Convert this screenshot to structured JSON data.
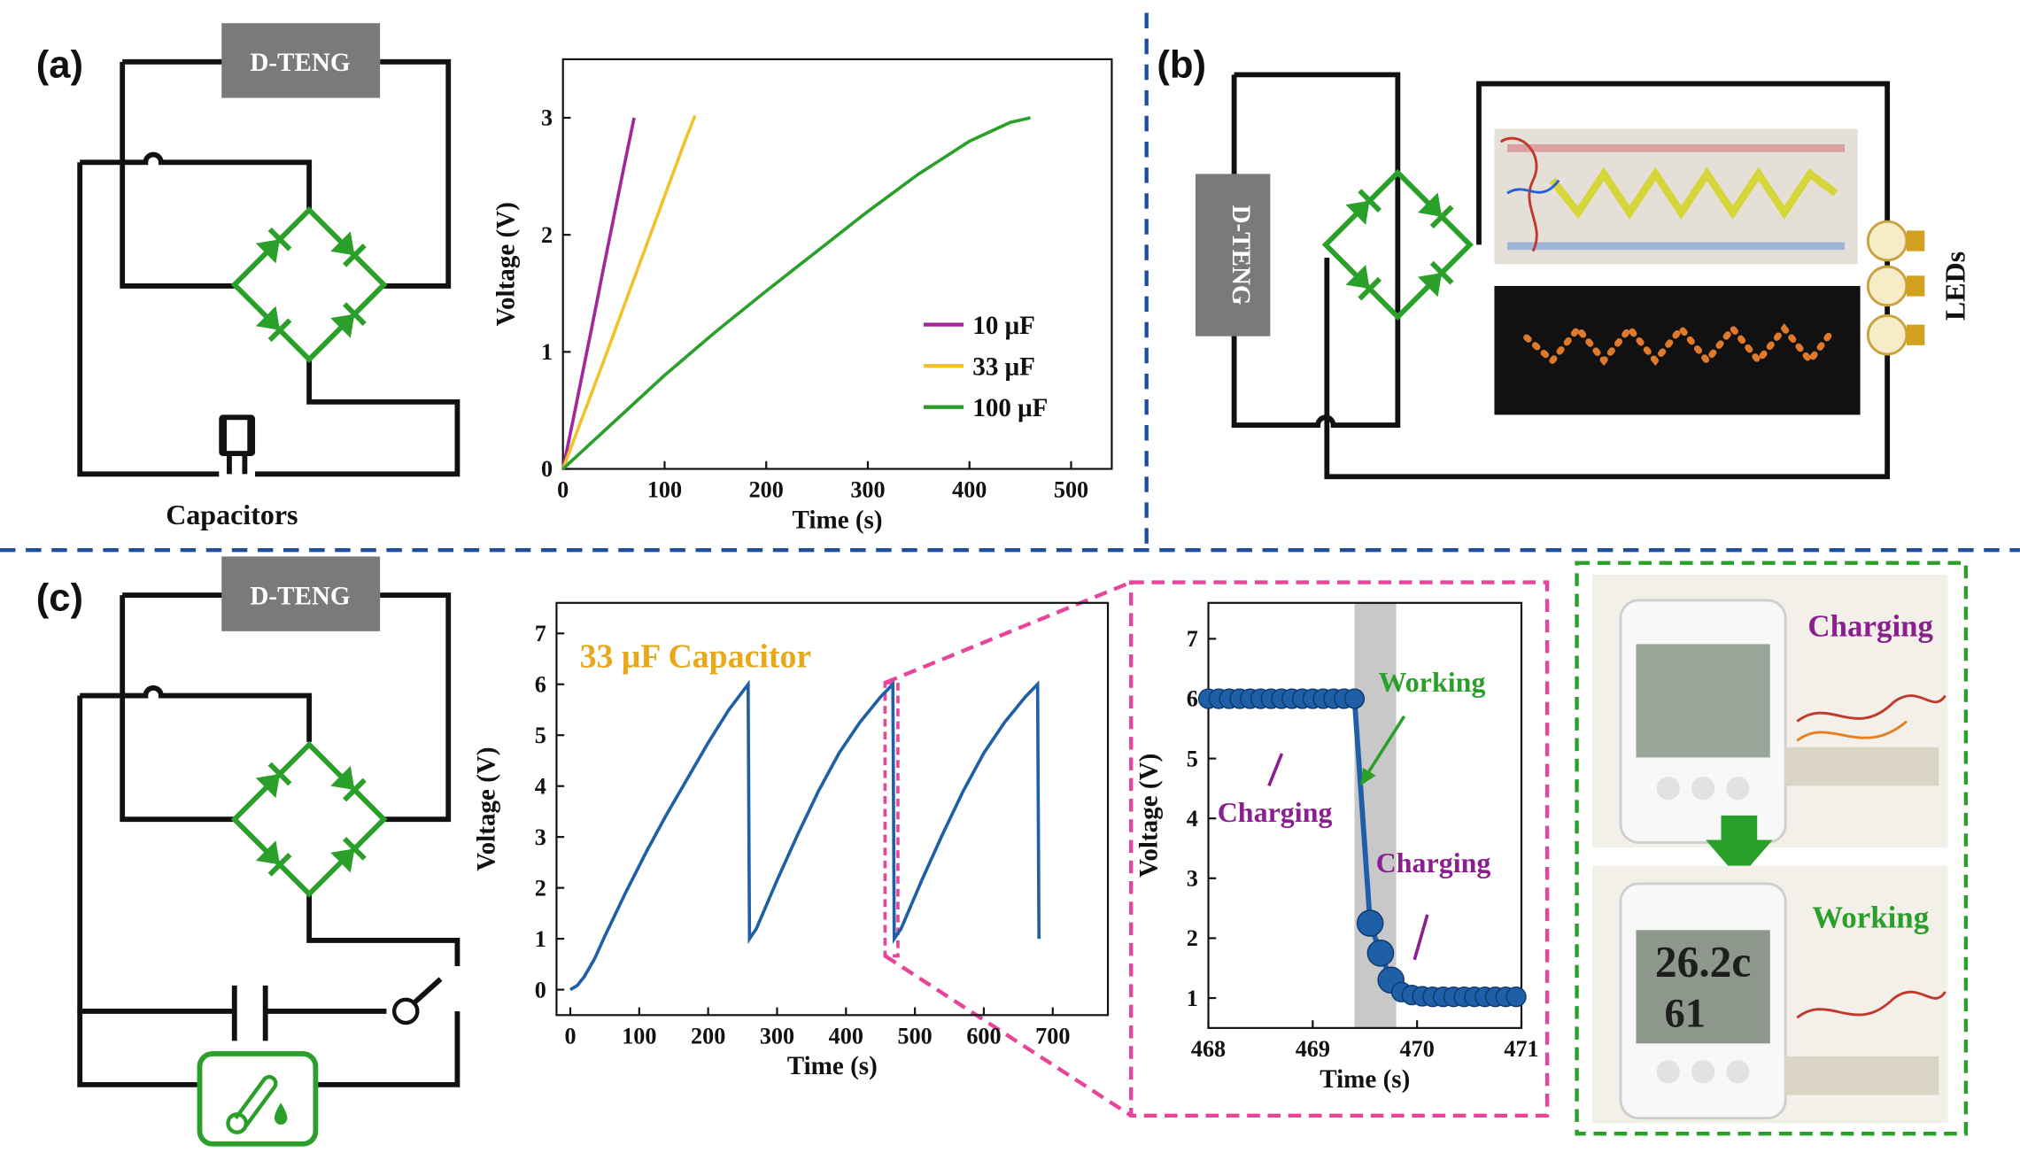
{
  "panels": {
    "a": {
      "label": "(a)",
      "teng": "D-TENG",
      "capacitors": "Capacitors"
    },
    "b": {
      "label": "(b)",
      "teng": "D-TENG",
      "leds": "LEDs"
    },
    "c": {
      "label": "(c)",
      "teng": "D-TENG"
    }
  },
  "inset_c": {
    "charging_top": "Charging",
    "working_bottom": "Working"
  },
  "colors": {
    "divider": "#1f4e9e",
    "diode": "#2aa02a",
    "zoom_box": "#e8449a",
    "photo_box": "#2aa02a",
    "series_blue": "#1f5fa8"
  },
  "icons": {
    "thermo_hygrometer": "thermometer-droplet-icon",
    "teng_box": "teng-generator-box"
  },
  "chart_data": [
    {
      "id": "a",
      "type": "line",
      "xlabel": "Time (s)",
      "ylabel": "Voltage (V)",
      "xlim": [
        0,
        540
      ],
      "ylim": [
        0,
        3.5
      ],
      "xticks": [
        0,
        100,
        200,
        300,
        400,
        500
      ],
      "yticks": [
        0,
        1,
        2,
        3
      ],
      "legend_position": "lower-right",
      "series": [
        {
          "name": "10 μF",
          "color": "#a0289a",
          "x": [
            0,
            10,
            20,
            30,
            40,
            50,
            60,
            70
          ],
          "y": [
            0,
            0.42,
            0.85,
            1.28,
            1.72,
            2.15,
            2.58,
            3.0
          ]
        },
        {
          "name": "33 μF",
          "color": "#f2c12e",
          "x": [
            0,
            20,
            40,
            60,
            80,
            100,
            120,
            130
          ],
          "y": [
            0,
            0.46,
            0.92,
            1.39,
            1.86,
            2.33,
            2.8,
            3.02
          ]
        },
        {
          "name": "100 μF",
          "color": "#2aa02a",
          "x": [
            0,
            50,
            100,
            150,
            200,
            250,
            300,
            350,
            400,
            440,
            460
          ],
          "y": [
            0,
            0.4,
            0.8,
            1.17,
            1.52,
            1.86,
            2.2,
            2.52,
            2.8,
            2.96,
            3.0
          ]
        }
      ]
    },
    {
      "id": "c-main",
      "type": "line",
      "annotation": "33 μF Capacitor",
      "xlabel": "Time (s)",
      "ylabel": "Voltage (V)",
      "xlim": [
        -20,
        780
      ],
      "ylim": [
        -0.5,
        7.6
      ],
      "xticks": [
        0,
        100,
        200,
        300,
        400,
        500,
        600,
        700
      ],
      "yticks": [
        0,
        1,
        2,
        3,
        4,
        5,
        6,
        7
      ],
      "series": [
        {
          "name": "",
          "color": "#1f5fa8",
          "x": [
            0,
            10,
            20,
            35,
            50,
            80,
            110,
            140,
            170,
            200,
            230,
            258,
            260,
            270,
            300,
            330,
            360,
            390,
            420,
            450,
            468,
            470,
            480,
            510,
            540,
            570,
            600,
            630,
            660,
            678,
            680
          ],
          "y": [
            0,
            0.08,
            0.25,
            0.6,
            1.05,
            1.9,
            2.7,
            3.45,
            4.15,
            4.85,
            5.5,
            6.0,
            1.0,
            1.2,
            2.15,
            3.05,
            3.9,
            4.65,
            5.25,
            5.75,
            6.0,
            1.0,
            1.2,
            2.15,
            3.05,
            3.9,
            4.65,
            5.25,
            5.75,
            6.0,
            1.0
          ]
        }
      ]
    },
    {
      "id": "c-zoom",
      "type": "scatter",
      "xlabel": "Time (s)",
      "ylabel": "Voltage (V)",
      "xlim": [
        468,
        471
      ],
      "ylim": [
        0.5,
        7.6
      ],
      "xticks": [
        468,
        469,
        470,
        471
      ],
      "yticks": [
        1,
        2,
        3,
        4,
        5,
        6,
        7
      ],
      "shaded_x": [
        469.4,
        469.8
      ],
      "annotations": [
        "Working",
        "Charging",
        "Charging"
      ],
      "series": [
        {
          "name": "",
          "color": "#1f5fa8",
          "x": [
            468.0,
            468.1,
            468.2,
            468.3,
            468.4,
            468.5,
            468.6,
            468.7,
            468.8,
            468.9,
            469.0,
            469.1,
            469.2,
            469.3,
            469.4,
            469.55,
            469.65,
            469.75,
            469.85,
            469.95,
            470.05,
            470.15,
            470.25,
            470.35,
            470.45,
            470.55,
            470.65,
            470.75,
            470.85,
            470.95
          ],
          "y": [
            6,
            6,
            6,
            6,
            6,
            6,
            6,
            6,
            6,
            6,
            6,
            6,
            6,
            6,
            6,
            2.25,
            1.75,
            1.3,
            1.1,
            1.05,
            1.03,
            1.02,
            1.02,
            1.02,
            1.02,
            1.02,
            1.02,
            1.02,
            1.02,
            1.02
          ]
        }
      ]
    }
  ]
}
